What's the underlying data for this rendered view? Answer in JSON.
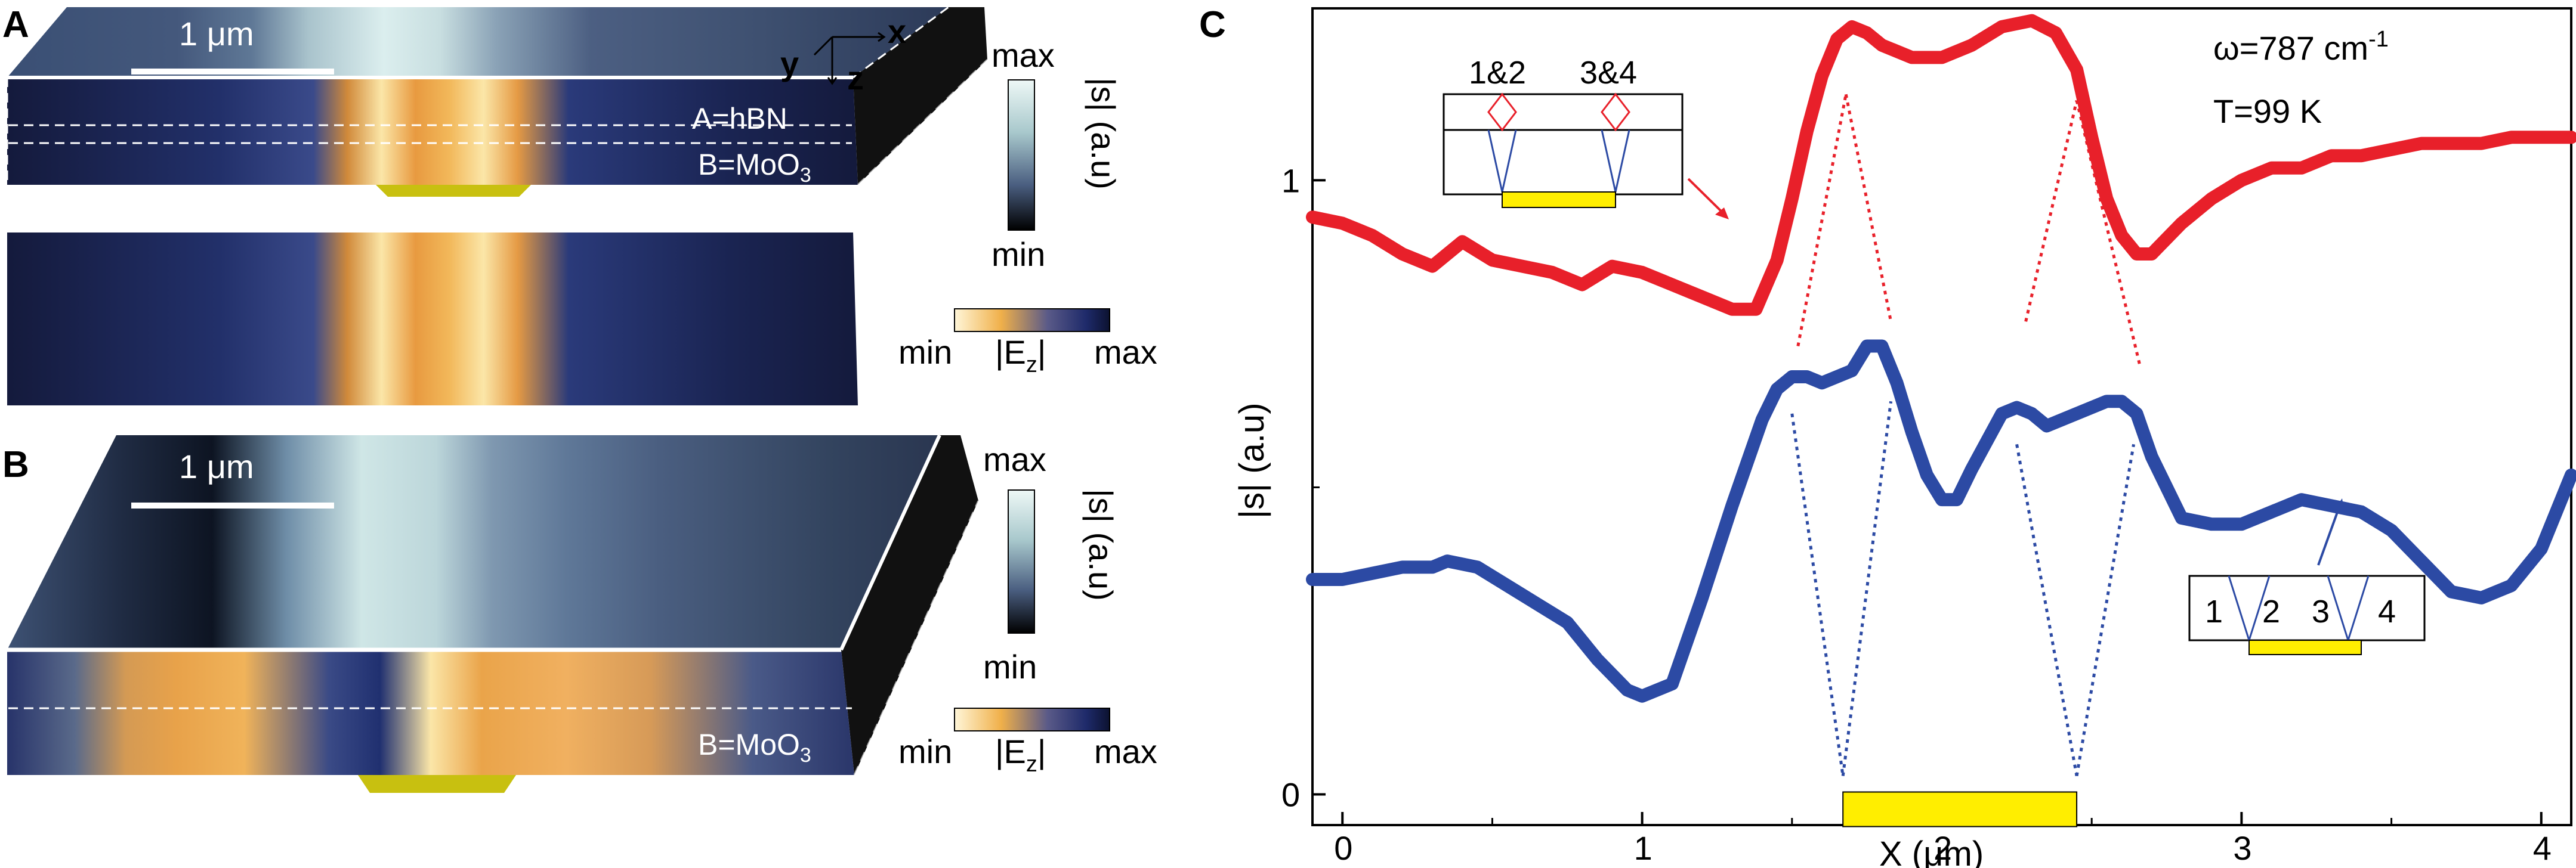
{
  "panels": {
    "a": {
      "letter": "A",
      "scale_bar": "1 μm",
      "axes": {
        "x": "x",
        "y": "y",
        "z": "z"
      },
      "colorbar_s": {
        "max": "max",
        "min": "min",
        "label": "|s| (a.u)"
      },
      "colorbar_e": {
        "min": "min",
        "max": "max",
        "label": "|E",
        "sub": "z",
        "label_end": "|"
      },
      "layer_a": "A=hBN",
      "layer_b": "B=MoO",
      "layer_b_sub": "3"
    },
    "b": {
      "letter": "B",
      "scale_bar": "1 μm",
      "colorbar_s": {
        "max": "max",
        "min": "min",
        "label": "|s| (a.u)"
      },
      "colorbar_e": {
        "min": "min",
        "max": "max",
        "label": "|E",
        "sub": "z",
        "label_end": "|"
      },
      "layer_b": "B=MoO",
      "layer_b_sub": "3"
    },
    "c": {
      "letter": "C",
      "omega": "ω=787 cm",
      "omega_sup": "-1",
      "temp": "T=99 K",
      "inset_top": {
        "left": "1&2",
        "right": "3&4"
      },
      "inset_bottom": {
        "n1": "1",
        "n2": "2",
        "n3": "3",
        "n4": "4"
      }
    }
  },
  "chart_data": {
    "type": "line",
    "xlabel": "X (μm)",
    "ylabel": "|s| (a.u)",
    "xlim": [
      -0.1,
      4.1
    ],
    "ylim": [
      -0.05,
      1.28
    ],
    "x_ticks": [
      "0",
      "1",
      "2",
      "3",
      "4"
    ],
    "y_ticks": [
      "0",
      "1"
    ],
    "series": [
      {
        "color": "#e8202a",
        "x": [
          -0.1,
          0.0,
          0.1,
          0.2,
          0.3,
          0.4,
          0.5,
          0.6,
          0.7,
          0.8,
          0.9,
          1.0,
          1.1,
          1.2,
          1.3,
          1.38,
          1.45,
          1.5,
          1.55,
          1.6,
          1.65,
          1.7,
          1.75,
          1.8,
          1.9,
          2.0,
          2.1,
          2.2,
          2.3,
          2.38,
          2.45,
          2.5,
          2.55,
          2.6,
          2.65,
          2.7,
          2.8,
          2.9,
          3.0,
          3.1,
          3.2,
          3.3,
          3.4,
          3.5,
          3.6,
          3.7,
          3.8,
          3.9,
          4.0,
          4.1
        ],
        "y": [
          0.94,
          0.93,
          0.91,
          0.88,
          0.86,
          0.9,
          0.87,
          0.86,
          0.85,
          0.83,
          0.86,
          0.85,
          0.83,
          0.81,
          0.79,
          0.79,
          0.87,
          0.97,
          1.08,
          1.17,
          1.23,
          1.25,
          1.24,
          1.22,
          1.2,
          1.2,
          1.22,
          1.25,
          1.26,
          1.24,
          1.18,
          1.07,
          0.97,
          0.91,
          0.88,
          0.88,
          0.93,
          0.97,
          1.0,
          1.02,
          1.02,
          1.04,
          1.04,
          1.05,
          1.06,
          1.06,
          1.06,
          1.07,
          1.07,
          1.07
        ]
      },
      {
        "color": "#2c4aa4",
        "x": [
          -0.1,
          0.0,
          0.1,
          0.2,
          0.3,
          0.35,
          0.45,
          0.55,
          0.65,
          0.75,
          0.85,
          0.95,
          1.0,
          1.1,
          1.2,
          1.3,
          1.4,
          1.45,
          1.5,
          1.55,
          1.6,
          1.7,
          1.75,
          1.8,
          1.85,
          1.9,
          1.95,
          2.0,
          2.05,
          2.1,
          2.2,
          2.25,
          2.3,
          2.35,
          2.45,
          2.55,
          2.6,
          2.65,
          2.7,
          2.8,
          2.9,
          3.0,
          3.1,
          3.2,
          3.3,
          3.4,
          3.5,
          3.6,
          3.7,
          3.8,
          3.9,
          4.0,
          4.1
        ],
        "y": [
          0.35,
          0.35,
          0.36,
          0.37,
          0.37,
          0.38,
          0.37,
          0.34,
          0.31,
          0.28,
          0.22,
          0.17,
          0.16,
          0.18,
          0.32,
          0.47,
          0.61,
          0.66,
          0.68,
          0.68,
          0.67,
          0.69,
          0.73,
          0.73,
          0.67,
          0.59,
          0.52,
          0.48,
          0.48,
          0.53,
          0.62,
          0.63,
          0.62,
          0.6,
          0.62,
          0.64,
          0.64,
          0.62,
          0.55,
          0.45,
          0.44,
          0.44,
          0.46,
          0.48,
          0.47,
          0.46,
          0.43,
          0.38,
          0.33,
          0.32,
          0.34,
          0.4,
          0.52
        ]
      }
    ]
  }
}
